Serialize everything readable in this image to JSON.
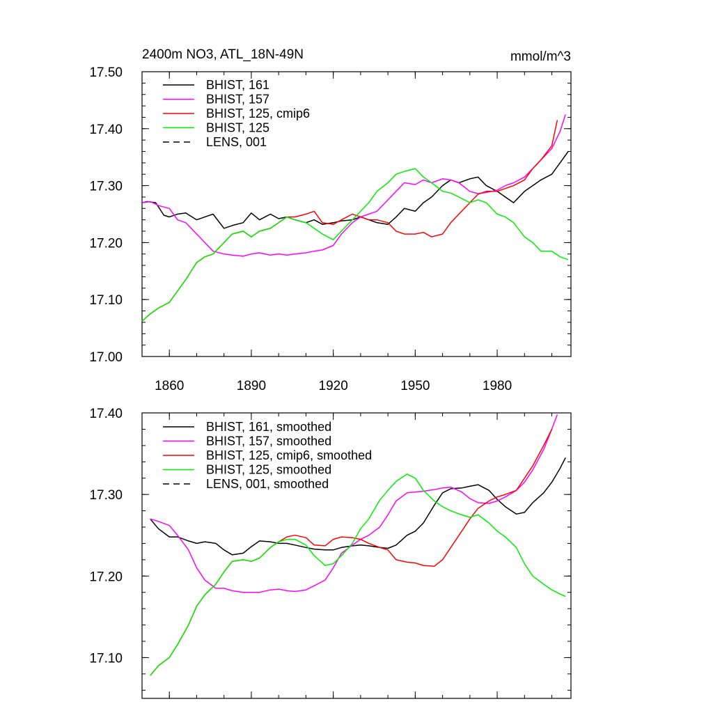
{
  "chart_data": [
    {
      "type": "line",
      "title": "2400m NO3, ATL_18N-49N",
      "units": "mmol/m^3",
      "xlim": [
        1850,
        2007
      ],
      "ylim": [
        17.0,
        17.5
      ],
      "xticks": [
        1860,
        1890,
        1920,
        1950,
        1980
      ],
      "xtick_labels": [
        "1860",
        "1890",
        "1920",
        "1950",
        "1980"
      ],
      "yticks": [
        17.0,
        17.1,
        17.2,
        17.3,
        17.4,
        17.5
      ],
      "ytick_labels": [
        "17.00",
        "17.10",
        "17.20",
        "17.30",
        "17.40",
        "17.50"
      ],
      "grid": false,
      "legend_position": "top-left",
      "series": [
        {
          "name": "BHIST, 161",
          "color": "#000000",
          "dash": "solid",
          "x": [
            1850,
            1852,
            1855,
            1858,
            1860,
            1863,
            1866,
            1870,
            1873,
            1876,
            1880,
            1883,
            1887,
            1890,
            1893,
            1897,
            1900,
            1903,
            1906,
            1910,
            1913,
            1916,
            1920,
            1923,
            1927,
            1930,
            1933,
            1936,
            1940,
            1943,
            1946,
            1950,
            1953,
            1956,
            1960,
            1963,
            1966,
            1970,
            1973,
            1976,
            1980,
            1983,
            1986,
            1990,
            1993,
            1996,
            2000,
            2003,
            2006
          ],
          "y": [
            17.27,
            17.272,
            17.27,
            17.248,
            17.245,
            17.25,
            17.252,
            17.24,
            17.245,
            17.25,
            17.225,
            17.23,
            17.235,
            17.252,
            17.24,
            17.25,
            17.242,
            17.245,
            17.24,
            17.235,
            17.24,
            17.232,
            17.235,
            17.238,
            17.24,
            17.245,
            17.24,
            17.235,
            17.232,
            17.245,
            17.26,
            17.255,
            17.27,
            17.28,
            17.3,
            17.31,
            17.305,
            17.312,
            17.315,
            17.3,
            17.29,
            17.28,
            17.27,
            17.29,
            17.3,
            17.31,
            17.32,
            17.34,
            17.36
          ]
        },
        {
          "name": "BHIST, 157",
          "color": "#ff00ff",
          "dash": "solid",
          "x": [
            1850,
            1853,
            1856,
            1860,
            1863,
            1866,
            1870,
            1873,
            1876,
            1880,
            1883,
            1887,
            1890,
            1893,
            1897,
            1900,
            1903,
            1906,
            1910,
            1913,
            1916,
            1920,
            1923,
            1927,
            1930,
            1933,
            1936,
            1940,
            1943,
            1946,
            1950,
            1953,
            1956,
            1960,
            1963,
            1966,
            1970,
            1973,
            1976,
            1980,
            1983,
            1986,
            1990,
            1993,
            1996,
            2000,
            2003,
            2005
          ],
          "y": [
            17.27,
            17.272,
            17.265,
            17.26,
            17.24,
            17.235,
            17.215,
            17.2,
            17.185,
            17.18,
            17.178,
            17.176,
            17.18,
            17.182,
            17.178,
            17.18,
            17.178,
            17.18,
            17.182,
            17.185,
            17.187,
            17.195,
            17.215,
            17.235,
            17.245,
            17.25,
            17.255,
            17.275,
            17.29,
            17.305,
            17.302,
            17.31,
            17.305,
            17.312,
            17.31,
            17.305,
            17.29,
            17.286,
            17.288,
            17.292,
            17.3,
            17.305,
            17.315,
            17.33,
            17.345,
            17.365,
            17.395,
            17.425
          ]
        },
        {
          "name": "BHIST, 125, cmip6",
          "color": "#ff0000",
          "dash": "solid",
          "x": [
            1850,
            1853,
            1856,
            1860,
            1863,
            1866,
            1870,
            1873,
            1876,
            1880,
            1883,
            1887,
            1890,
            1893,
            1897,
            1900,
            1903,
            1906,
            1910,
            1913,
            1916,
            1920,
            1923,
            1927,
            1930,
            1933,
            1936,
            1940,
            1943,
            1946,
            1950,
            1953,
            1956,
            1960,
            1963,
            1966,
            1970,
            1973,
            1976,
            1980,
            1983,
            1986,
            1990,
            1993,
            1996,
            2000,
            2002
          ],
          "y": [
            17.062,
            17.075,
            17.085,
            17.095,
            17.115,
            17.135,
            17.165,
            17.175,
            17.18,
            17.2,
            17.215,
            17.22,
            17.21,
            17.22,
            17.225,
            17.235,
            17.245,
            17.245,
            17.25,
            17.255,
            17.235,
            17.232,
            17.24,
            17.25,
            17.245,
            17.24,
            17.24,
            17.235,
            17.22,
            17.215,
            17.215,
            17.218,
            17.21,
            17.215,
            17.235,
            17.25,
            17.27,
            17.285,
            17.29,
            17.29,
            17.295,
            17.3,
            17.31,
            17.33,
            17.345,
            17.37,
            17.415
          ]
        },
        {
          "name": "BHIST, 125",
          "color": "#00ee00",
          "dash": "solid",
          "x": [
            1850,
            1853,
            1856,
            1860,
            1863,
            1866,
            1870,
            1873,
            1876,
            1880,
            1883,
            1887,
            1890,
            1893,
            1897,
            1900,
            1903,
            1906,
            1910,
            1913,
            1916,
            1920,
            1923,
            1927,
            1930,
            1933,
            1936,
            1940,
            1943,
            1946,
            1950,
            1953,
            1956,
            1960,
            1963,
            1966,
            1970,
            1973,
            1976,
            1980,
            1983,
            1986,
            1990,
            1993,
            1996,
            2000,
            2003,
            2006
          ],
          "y": [
            17.062,
            17.075,
            17.085,
            17.095,
            17.115,
            17.135,
            17.165,
            17.175,
            17.18,
            17.2,
            17.215,
            17.22,
            17.21,
            17.22,
            17.225,
            17.235,
            17.245,
            17.24,
            17.235,
            17.225,
            17.215,
            17.205,
            17.22,
            17.24,
            17.255,
            17.27,
            17.29,
            17.305,
            17.32,
            17.325,
            17.33,
            17.315,
            17.305,
            17.29,
            17.287,
            17.28,
            17.27,
            17.275,
            17.27,
            17.25,
            17.245,
            17.235,
            17.21,
            17.2,
            17.185,
            17.185,
            17.175,
            17.17
          ]
        },
        {
          "name": "LENS, 001",
          "color": "#000000",
          "dash": "dashed",
          "x": [],
          "y": []
        }
      ]
    },
    {
      "type": "line",
      "xlim": [
        1850,
        2007
      ],
      "ylim": [
        17.05,
        17.4
      ],
      "xticks": [
        1860,
        1890,
        1920,
        1950,
        1980
      ],
      "xtick_labels": [],
      "yticks": [
        17.1,
        17.2,
        17.3,
        17.4
      ],
      "ytick_labels": [
        "17.10",
        "17.20",
        "17.30",
        "17.40"
      ],
      "grid": false,
      "legend_position": "top-left",
      "series": [
        {
          "name": "BHIST, 161, smoothed",
          "color": "#000000",
          "dash": "solid",
          "x": [
            1853,
            1856,
            1860,
            1863,
            1867,
            1870,
            1873,
            1877,
            1880,
            1883,
            1887,
            1890,
            1893,
            1897,
            1900,
            1903,
            1906,
            1910,
            1913,
            1917,
            1920,
            1923,
            1927,
            1930,
            1933,
            1937,
            1940,
            1943,
            1947,
            1950,
            1953,
            1957,
            1960,
            1963,
            1967,
            1970,
            1973,
            1977,
            1980,
            1983,
            1987,
            1990,
            1993,
            1997,
            2000,
            2003,
            2005
          ],
          "y": [
            17.27,
            17.258,
            17.248,
            17.248,
            17.243,
            17.24,
            17.242,
            17.24,
            17.232,
            17.226,
            17.228,
            17.236,
            17.243,
            17.242,
            17.24,
            17.24,
            17.238,
            17.235,
            17.233,
            17.232,
            17.232,
            17.235,
            17.237,
            17.238,
            17.237,
            17.235,
            17.234,
            17.238,
            17.25,
            17.255,
            17.265,
            17.287,
            17.302,
            17.307,
            17.308,
            17.31,
            17.312,
            17.305,
            17.294,
            17.285,
            17.276,
            17.278,
            17.29,
            17.302,
            17.315,
            17.332,
            17.345
          ]
        },
        {
          "name": "BHIST, 157, smoothed",
          "color": "#ff00ff",
          "dash": "solid",
          "x": [
            1853,
            1856,
            1860,
            1863,
            1867,
            1870,
            1873,
            1877,
            1880,
            1883,
            1887,
            1890,
            1893,
            1897,
            1900,
            1903,
            1906,
            1910,
            1913,
            1917,
            1920,
            1923,
            1927,
            1930,
            1933,
            1937,
            1940,
            1943,
            1947,
            1950,
            1953,
            1957,
            1960,
            1963,
            1967,
            1970,
            1973,
            1977,
            1980,
            1983,
            1987,
            1990,
            1993,
            1997,
            2000,
            2002
          ],
          "y": [
            17.27,
            17.267,
            17.262,
            17.25,
            17.232,
            17.21,
            17.195,
            17.185,
            17.185,
            17.182,
            17.18,
            17.18,
            17.18,
            17.183,
            17.184,
            17.182,
            17.181,
            17.183,
            17.188,
            17.195,
            17.21,
            17.228,
            17.238,
            17.245,
            17.25,
            17.26,
            17.275,
            17.292,
            17.302,
            17.303,
            17.304,
            17.306,
            17.308,
            17.309,
            17.303,
            17.295,
            17.29,
            17.289,
            17.292,
            17.297,
            17.305,
            17.315,
            17.33,
            17.355,
            17.38,
            17.398
          ]
        },
        {
          "name": "BHIST, 125, cmip6, smoothed",
          "color": "#ff0000",
          "dash": "solid",
          "x": [
            1853,
            1856,
            1860,
            1863,
            1867,
            1870,
            1873,
            1877,
            1880,
            1883,
            1887,
            1890,
            1893,
            1897,
            1900,
            1903,
            1906,
            1910,
            1913,
            1917,
            1920,
            1923,
            1927,
            1930,
            1933,
            1937,
            1940,
            1943,
            1947,
            1950,
            1953,
            1957,
            1960,
            1963,
            1967,
            1970,
            1973,
            1977,
            1980,
            1983,
            1987,
            1990,
            1993,
            1997,
            2000
          ],
          "y": [
            17.078,
            17.09,
            17.1,
            17.116,
            17.14,
            17.163,
            17.177,
            17.19,
            17.205,
            17.218,
            17.22,
            17.218,
            17.222,
            17.235,
            17.242,
            17.248,
            17.25,
            17.247,
            17.238,
            17.237,
            17.245,
            17.248,
            17.247,
            17.245,
            17.24,
            17.235,
            17.232,
            17.22,
            17.217,
            17.216,
            17.213,
            17.212,
            17.22,
            17.235,
            17.255,
            17.27,
            17.283,
            17.292,
            17.297,
            17.3,
            17.305,
            17.32,
            17.335,
            17.36,
            17.38
          ]
        },
        {
          "name": "BHIST, 125, smoothed",
          "color": "#00ee00",
          "dash": "solid",
          "x": [
            1853,
            1856,
            1860,
            1863,
            1867,
            1870,
            1873,
            1877,
            1880,
            1883,
            1887,
            1890,
            1893,
            1897,
            1900,
            1903,
            1906,
            1910,
            1913,
            1917,
            1920,
            1923,
            1927,
            1930,
            1933,
            1937,
            1940,
            1943,
            1947,
            1950,
            1953,
            1957,
            1960,
            1963,
            1967,
            1970,
            1973,
            1977,
            1980,
            1983,
            1987,
            1990,
            1993,
            1997,
            2000,
            2003,
            2005
          ],
          "y": [
            17.078,
            17.09,
            17.1,
            17.116,
            17.14,
            17.163,
            17.177,
            17.19,
            17.205,
            17.218,
            17.22,
            17.218,
            17.222,
            17.235,
            17.242,
            17.245,
            17.245,
            17.238,
            17.225,
            17.213,
            17.215,
            17.225,
            17.24,
            17.258,
            17.27,
            17.293,
            17.305,
            17.316,
            17.325,
            17.32,
            17.305,
            17.292,
            17.285,
            17.28,
            17.275,
            17.272,
            17.275,
            17.265,
            17.255,
            17.248,
            17.235,
            17.215,
            17.2,
            17.19,
            17.183,
            17.178,
            17.175
          ]
        },
        {
          "name": "LENS, 001, smoothed",
          "color": "#000000",
          "dash": "dashed",
          "x": [],
          "y": []
        }
      ]
    }
  ]
}
